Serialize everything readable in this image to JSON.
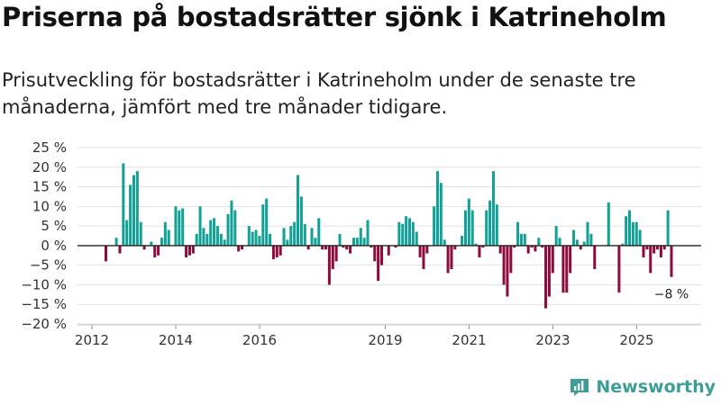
{
  "header": {
    "title": "Priserna på bostadsrätter sjönk i Katrineholm",
    "subtitle": "Prisutveckling för bostadsrätter i Katrineholm under de senaste tre månaderna, jämfört med tre månader tidigare."
  },
  "colors": {
    "positive": "#12a196",
    "negative": "#8c0c3e",
    "grid": "#e2e2e2",
    "brand": "#3d9e95"
  },
  "brand": {
    "name": "Newsworthy",
    "icon": "newsworthy-logo-icon"
  },
  "chart_data": {
    "type": "bar",
    "title": "Priserna på bostadsrätter sjönk i Katrineholm",
    "xlabel": "",
    "ylabel": "",
    "ylim": [
      -20,
      25
    ],
    "yticks": [
      -20,
      -15,
      -10,
      -5,
      0,
      5,
      10,
      15,
      20,
      25
    ],
    "ytick_labels": [
      "−20 %",
      "−15 %",
      "−10 %",
      "−5 %",
      "0 %",
      "5 %",
      "10 %",
      "15 %",
      "20 %",
      "25 %"
    ],
    "xticks": [
      2012,
      2014,
      2016,
      2019,
      2021,
      2023,
      2025
    ],
    "x_start": 2012.0,
    "x_step": 0.0833,
    "grid": true,
    "legend": "none",
    "last_label": "−8 %",
    "values": [
      null,
      null,
      null,
      null,
      -4,
      null,
      null,
      2,
      -2,
      21,
      6.5,
      15.5,
      18,
      19,
      6,
      -1,
      0,
      1,
      -3,
      -2.5,
      2,
      6,
      4,
      0,
      10,
      9,
      9.5,
      -3,
      -2.5,
      -2,
      3,
      10,
      4.5,
      3,
      6.5,
      7,
      5,
      3,
      1.5,
      8,
      11.5,
      9,
      -1.5,
      -1,
      null,
      5,
      3.5,
      4,
      2.5,
      10.5,
      12,
      3,
      -3.5,
      -3,
      -2.5,
      4.5,
      1.5,
      5,
      6,
      18,
      12.5,
      5.5,
      -1,
      4.5,
      2,
      7,
      -1,
      -1,
      -10,
      -6,
      -4,
      3,
      -0.5,
      -1,
      -2,
      2,
      2,
      4.5,
      2,
      6.5,
      -0.5,
      -4,
      -9,
      -5,
      0,
      -2.5,
      0,
      -0.5,
      6,
      5.5,
      7.5,
      7,
      6,
      3.5,
      -3,
      -6,
      -2,
      null,
      10,
      19,
      16,
      1.5,
      -7,
      -6,
      -1,
      0,
      2.5,
      9,
      12,
      9,
      0.5,
      -3,
      -0.5,
      9,
      11.5,
      19,
      10.5,
      -2,
      -10,
      -13,
      -7,
      -0.5,
      6,
      3,
      3,
      -2,
      -0.5,
      -1.5,
      2,
      -0.5,
      -16,
      -13,
      -7,
      5,
      2,
      -12,
      -12,
      -7,
      4,
      1.5,
      -1,
      1,
      6,
      3,
      -6,
      null,
      null,
      null,
      11,
      null,
      null,
      -12,
      0.5,
      7.5,
      9,
      6,
      6,
      4,
      -3,
      -1,
      -7,
      -2,
      -1,
      -3,
      -1,
      9,
      -8
    ]
  }
}
